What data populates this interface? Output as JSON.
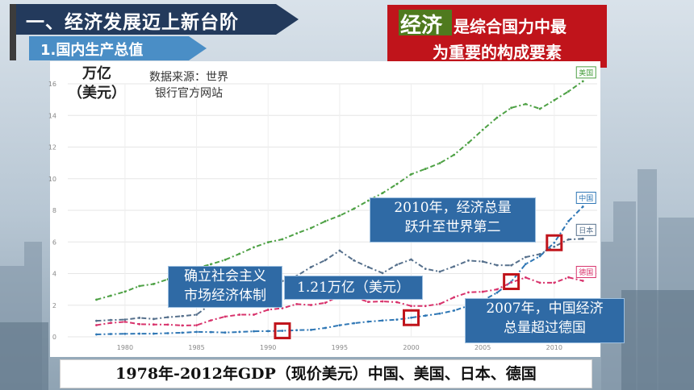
{
  "slide": {
    "title": "一、经济发展迈上新台阶",
    "subtitle": "1.国内生产总值",
    "key_message": {
      "highlight": "经济",
      "line1": "是综合国力中最",
      "line2": "为重要的构成要素"
    },
    "source_line1": "数据来源：世界",
    "source_line2": "银行官方网站",
    "caption": "1978年-2012年GDP（现价美元）中国、美国、日本、德国"
  },
  "annotations": {
    "reform": [
      "确立社会主义",
      "市场经济体制"
    ],
    "value_1990s": "1.21万亿（美元）",
    "y2010": [
      "2010年，经济总量",
      "跃升至世界第二"
    ],
    "y2007": [
      "2007年，中国经济",
      "总量超过德国"
    ]
  },
  "chart_data": {
    "type": "line",
    "ylabel_lines": [
      "万亿",
      "（美元）"
    ],
    "ylim": [
      0,
      16
    ],
    "yticks": [
      0,
      2,
      4,
      6,
      8,
      10,
      12,
      14,
      16
    ],
    "xlim": [
      1976,
      2013
    ],
    "xticks": [
      1980,
      1985,
      1990,
      1995,
      2000,
      2005,
      2010
    ],
    "grid": true,
    "x": [
      1978,
      1979,
      1980,
      1981,
      1982,
      1983,
      1984,
      1985,
      1986,
      1987,
      1988,
      1989,
      1990,
      1991,
      1992,
      1993,
      1994,
      1995,
      1996,
      1997,
      1998,
      1999,
      2000,
      2001,
      2002,
      2003,
      2004,
      2005,
      2006,
      2007,
      2008,
      2009,
      2010,
      2011,
      2012
    ],
    "series": [
      {
        "name": "美国",
        "color": "#4ea145",
        "dash": "6,3,2,3",
        "values": [
          2.35,
          2.6,
          2.86,
          3.21,
          3.34,
          3.64,
          4.04,
          4.35,
          4.59,
          4.87,
          5.25,
          5.66,
          5.98,
          6.17,
          6.54,
          6.88,
          7.31,
          7.66,
          8.1,
          8.61,
          9.09,
          9.66,
          10.28,
          10.62,
          10.98,
          11.51,
          12.27,
          13.09,
          13.86,
          14.48,
          14.72,
          14.42,
          14.96,
          15.52,
          16.16
        ]
      },
      {
        "name": "中国",
        "color": "#2f77b5",
        "dash": "6,3,2,3",
        "values": [
          0.15,
          0.18,
          0.19,
          0.2,
          0.2,
          0.23,
          0.26,
          0.31,
          0.3,
          0.27,
          0.31,
          0.35,
          0.36,
          0.38,
          0.42,
          0.44,
          0.56,
          0.73,
          0.86,
          0.96,
          1.03,
          1.09,
          1.21,
          1.34,
          1.47,
          1.66,
          1.96,
          2.29,
          2.79,
          3.49,
          4.6,
          5.1,
          5.95,
          7.32,
          8.23
        ]
      },
      {
        "name": "日本",
        "color": "#56708c",
        "dash": "6,3,2,3",
        "values": [
          1.01,
          1.06,
          1.09,
          1.2,
          1.13,
          1.24,
          1.31,
          1.4,
          2.07,
          2.49,
          3.07,
          3.05,
          3.1,
          3.53,
          3.85,
          4.41,
          4.85,
          5.45,
          4.83,
          4.41,
          4.03,
          4.56,
          4.89,
          4.3,
          4.12,
          4.45,
          4.82,
          4.76,
          4.53,
          4.52,
          5.04,
          5.23,
          5.7,
          6.16,
          6.2
        ]
      },
      {
        "name": "德国",
        "color": "#d8336c",
        "dash": "6,3,2,3",
        "values": [
          0.74,
          0.88,
          0.95,
          0.8,
          0.78,
          0.77,
          0.72,
          0.73,
          1.04,
          1.28,
          1.4,
          1.4,
          1.71,
          1.81,
          2.07,
          2.01,
          2.15,
          2.59,
          2.5,
          2.21,
          2.24,
          2.19,
          1.95,
          1.95,
          2.08,
          2.5,
          2.81,
          2.85,
          3.0,
          3.44,
          3.75,
          3.42,
          3.42,
          3.76,
          3.54
        ]
      }
    ],
    "highlight_points": [
      {
        "year": 1991,
        "value": 0.38
      },
      {
        "year": 2000,
        "value": 1.21
      },
      {
        "year": 2007,
        "value": 3.49
      },
      {
        "year": 2010,
        "value": 5.95
      }
    ],
    "colors": {
      "accent": "#c0141b",
      "box": "#2f6aa5"
    }
  }
}
